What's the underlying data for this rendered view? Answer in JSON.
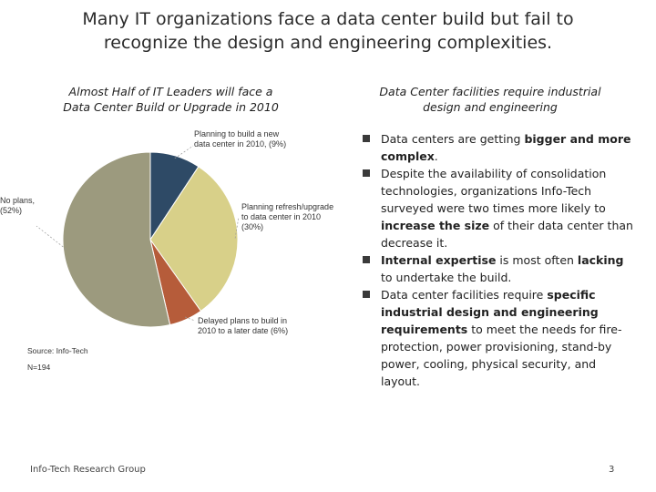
{
  "slide": {
    "title_line1": "Many IT organizations face a data center build but fail to",
    "title_line2": "recognize the design and engineering complexities.",
    "left_heading_line1": "Almost Half of IT Leaders will face a",
    "left_heading_line2": "Data Center Build or Upgrade in 2010",
    "right_heading_line1": "Data Center facilities require industrial",
    "right_heading_line2": "design and engineering",
    "source": "Source: Info-Tech",
    "sample": "N=194",
    "footer": "Info-Tech Research Group",
    "page_number": "3"
  },
  "bullets": [
    {
      "parts": [
        {
          "t": "Data centers are getting "
        },
        {
          "t": "bigger and more complex",
          "b": true
        },
        {
          "t": "."
        }
      ]
    },
    {
      "parts": [
        {
          "t": "Despite the availability of consolidation technologies, organizations Info-Tech surveyed were two times more likely to "
        },
        {
          "t": "increase the size",
          "b": true
        },
        {
          "t": " of their data center than decrease it."
        }
      ]
    },
    {
      "parts": [
        {
          "t": "Internal expertise",
          "b": true
        },
        {
          "t": " is most often "
        },
        {
          "t": "lacking",
          "b": true
        },
        {
          "t": " to undertake the build."
        }
      ]
    },
    {
      "parts": [
        {
          "t": "Data center facilities require "
        },
        {
          "t": "specific industrial design and engineering requirements",
          "b": true
        },
        {
          "t": " to meet the needs for fire-protection, power provisioning, stand-by power, cooling, physical security, and layout."
        }
      ]
    }
  ],
  "chart_data": {
    "type": "pie",
    "title": "Almost Half of IT Leaders will face a Data Center Build or Upgrade in 2010",
    "slices": [
      {
        "label_lines": [
          "Planning to build a new",
          "data center in 2010, (9%)"
        ],
        "value": 9,
        "color": "#2e4a66"
      },
      {
        "label_lines": [
          "Planning refresh/upgrade",
          "to data center in 2010",
          "(30%)"
        ],
        "value": 30,
        "color": "#d8d089"
      },
      {
        "label_lines": [
          "Delayed plans to build in",
          "2010 to a later date (6%)"
        ],
        "value": 6,
        "color": "#b65c3a"
      },
      {
        "label_lines": [
          "No plans,",
          "(52%)"
        ],
        "value": 52,
        "color": "#9c9a7e"
      }
    ],
    "start_angle_deg": 0,
    "legend": "callouts"
  }
}
